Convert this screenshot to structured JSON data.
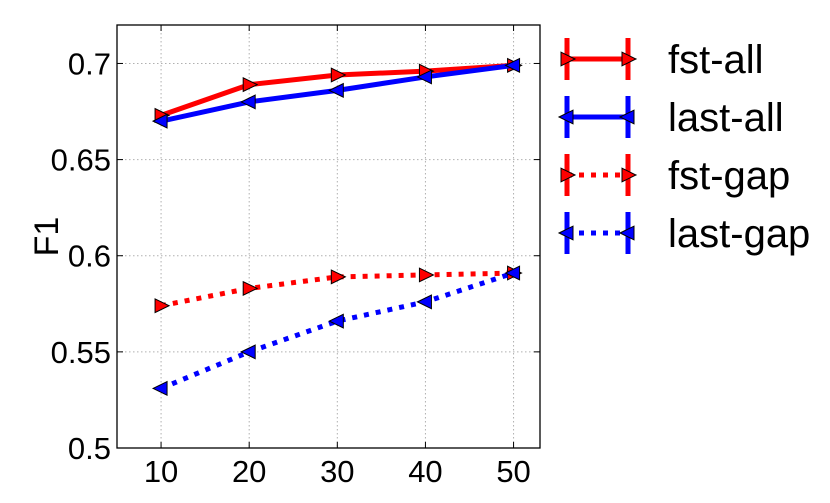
{
  "chart_data": {
    "type": "line",
    "title": "",
    "xlabel": "",
    "ylabel": "F1",
    "x": [
      10,
      20,
      30,
      40,
      50
    ],
    "xlim": [
      5,
      53
    ],
    "ylim": [
      0.5,
      0.72
    ],
    "xticks": [
      "10",
      "20",
      "30",
      "40",
      "50"
    ],
    "yticks": [
      "0.5",
      "0.55",
      "0.6",
      "0.65",
      "0.7"
    ],
    "grid": true,
    "legend_placement": "outside-right",
    "series": [
      {
        "name": "fst-all",
        "values": [
          0.673,
          0.689,
          0.694,
          0.696,
          0.699
        ],
        "color": "#ff0000",
        "linestyle": "solid",
        "marker": "triangle-right"
      },
      {
        "name": "last-all",
        "values": [
          0.67,
          0.68,
          0.686,
          0.693,
          0.699
        ],
        "color": "#0000ff",
        "linestyle": "solid",
        "marker": "triangle-left"
      },
      {
        "name": "fst-gap",
        "values": [
          0.574,
          0.583,
          0.589,
          0.59,
          0.591
        ],
        "color": "#ff0000",
        "linestyle": "dotted",
        "marker": "triangle-right"
      },
      {
        "name": "last-gap",
        "values": [
          0.531,
          0.55,
          0.566,
          0.576,
          0.591
        ],
        "color": "#0000ff",
        "linestyle": "dotted",
        "marker": "triangle-left"
      }
    ]
  }
}
